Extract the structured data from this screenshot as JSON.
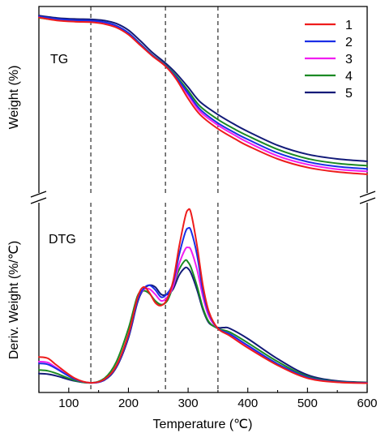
{
  "chart_data": {
    "type": "line",
    "xlabel": "Temperature (℃)",
    "xlim": [
      50,
      600
    ],
    "xticks": [
      100,
      200,
      300,
      400,
      500,
      600
    ],
    "vlines": [
      137,
      262,
      350
    ],
    "grid": false,
    "legend_position": "top-right",
    "panels": [
      {
        "label": "TG",
        "ylabel": "Weight (%)",
        "ylim": [
          0,
          1
        ]
      },
      {
        "label": "DTG",
        "ylabel": "Deriv. Weight (%/℃)",
        "ylim": [
          0,
          1
        ]
      }
    ],
    "series": [
      {
        "name": "1",
        "color": "#ee1c1c",
        "tg": [
          [
            50,
            0.975
          ],
          [
            80,
            0.958
          ],
          [
            110,
            0.951
          ],
          [
            137,
            0.948
          ],
          [
            160,
            0.938
          ],
          [
            180,
            0.918
          ],
          [
            200,
            0.878
          ],
          [
            220,
            0.818
          ],
          [
            240,
            0.758
          ],
          [
            262,
            0.7
          ],
          [
            280,
            0.628
          ],
          [
            300,
            0.518
          ],
          [
            320,
            0.428
          ],
          [
            350,
            0.348
          ],
          [
            380,
            0.288
          ],
          [
            400,
            0.252
          ],
          [
            450,
            0.178
          ],
          [
            500,
            0.13
          ],
          [
            550,
            0.105
          ],
          [
            600,
            0.092
          ]
        ],
        "dtg": [
          [
            50,
            0.175
          ],
          [
            65,
            0.168
          ],
          [
            80,
            0.13
          ],
          [
            110,
            0.06
          ],
          [
            137,
            0.035
          ],
          [
            160,
            0.055
          ],
          [
            180,
            0.13
          ],
          [
            200,
            0.3
          ],
          [
            215,
            0.495
          ],
          [
            225,
            0.555
          ],
          [
            235,
            0.525
          ],
          [
            245,
            0.47
          ],
          [
            255,
            0.455
          ],
          [
            265,
            0.49
          ],
          [
            275,
            0.59
          ],
          [
            285,
            0.775
          ],
          [
            295,
            0.935
          ],
          [
            300,
            0.975
          ],
          [
            305,
            0.955
          ],
          [
            315,
            0.78
          ],
          [
            325,
            0.56
          ],
          [
            335,
            0.42
          ],
          [
            350,
            0.33
          ],
          [
            370,
            0.29
          ],
          [
            400,
            0.225
          ],
          [
            450,
            0.13
          ],
          [
            500,
            0.06
          ],
          [
            550,
            0.038
          ],
          [
            600,
            0.033
          ]
        ]
      },
      {
        "name": "2",
        "color": "#1a2ee6",
        "tg": [
          [
            50,
            0.98
          ],
          [
            80,
            0.966
          ],
          [
            110,
            0.959
          ],
          [
            137,
            0.957
          ],
          [
            160,
            0.948
          ],
          [
            180,
            0.928
          ],
          [
            200,
            0.888
          ],
          [
            220,
            0.825
          ],
          [
            240,
            0.762
          ],
          [
            262,
            0.703
          ],
          [
            280,
            0.638
          ],
          [
            300,
            0.548
          ],
          [
            320,
            0.458
          ],
          [
            350,
            0.38
          ],
          [
            380,
            0.322
          ],
          [
            400,
            0.288
          ],
          [
            450,
            0.212
          ],
          [
            500,
            0.162
          ],
          [
            550,
            0.135
          ],
          [
            600,
            0.122
          ]
        ],
        "dtg": [
          [
            50,
            0.14
          ],
          [
            65,
            0.135
          ],
          [
            80,
            0.11
          ],
          [
            110,
            0.055
          ],
          [
            137,
            0.035
          ],
          [
            160,
            0.052
          ],
          [
            180,
            0.125
          ],
          [
            200,
            0.29
          ],
          [
            215,
            0.48
          ],
          [
            225,
            0.545
          ],
          [
            235,
            0.565
          ],
          [
            245,
            0.54
          ],
          [
            255,
            0.5
          ],
          [
            265,
            0.52
          ],
          [
            275,
            0.58
          ],
          [
            285,
            0.73
          ],
          [
            295,
            0.85
          ],
          [
            300,
            0.875
          ],
          [
            305,
            0.86
          ],
          [
            315,
            0.73
          ],
          [
            325,
            0.53
          ],
          [
            335,
            0.41
          ],
          [
            350,
            0.33
          ],
          [
            370,
            0.3
          ],
          [
            400,
            0.238
          ],
          [
            450,
            0.138
          ],
          [
            500,
            0.065
          ],
          [
            550,
            0.04
          ],
          [
            600,
            0.035
          ]
        ]
      },
      {
        "name": "3",
        "color": "#f01ef0",
        "tg": [
          [
            50,
            0.977
          ],
          [
            80,
            0.962
          ],
          [
            110,
            0.956
          ],
          [
            137,
            0.953
          ],
          [
            160,
            0.944
          ],
          [
            180,
            0.924
          ],
          [
            200,
            0.885
          ],
          [
            220,
            0.822
          ],
          [
            240,
            0.76
          ],
          [
            262,
            0.702
          ],
          [
            280,
            0.635
          ],
          [
            300,
            0.538
          ],
          [
            320,
            0.445
          ],
          [
            350,
            0.368
          ],
          [
            380,
            0.308
          ],
          [
            400,
            0.272
          ],
          [
            450,
            0.195
          ],
          [
            500,
            0.147
          ],
          [
            550,
            0.12
          ],
          [
            600,
            0.108
          ]
        ],
        "dtg": [
          [
            50,
            0.15
          ],
          [
            65,
            0.145
          ],
          [
            80,
            0.115
          ],
          [
            110,
            0.055
          ],
          [
            137,
            0.035
          ],
          [
            160,
            0.052
          ],
          [
            180,
            0.125
          ],
          [
            200,
            0.29
          ],
          [
            215,
            0.48
          ],
          [
            225,
            0.54
          ],
          [
            235,
            0.545
          ],
          [
            245,
            0.515
          ],
          [
            255,
            0.48
          ],
          [
            265,
            0.5
          ],
          [
            275,
            0.56
          ],
          [
            285,
            0.68
          ],
          [
            295,
            0.76
          ],
          [
            300,
            0.77
          ],
          [
            305,
            0.755
          ],
          [
            315,
            0.65
          ],
          [
            325,
            0.5
          ],
          [
            335,
            0.395
          ],
          [
            350,
            0.33
          ],
          [
            370,
            0.295
          ],
          [
            400,
            0.235
          ],
          [
            450,
            0.135
          ],
          [
            500,
            0.062
          ],
          [
            550,
            0.039
          ],
          [
            600,
            0.034
          ]
        ]
      },
      {
        "name": "4",
        "color": "#1b8a24",
        "tg": [
          [
            50,
            0.973
          ],
          [
            80,
            0.96
          ],
          [
            110,
            0.955
          ],
          [
            137,
            0.952
          ],
          [
            160,
            0.943
          ],
          [
            180,
            0.924
          ],
          [
            200,
            0.887
          ],
          [
            220,
            0.826
          ],
          [
            240,
            0.764
          ],
          [
            262,
            0.706
          ],
          [
            280,
            0.645
          ],
          [
            300,
            0.562
          ],
          [
            320,
            0.475
          ],
          [
            350,
            0.4
          ],
          [
            380,
            0.342
          ],
          [
            400,
            0.308
          ],
          [
            450,
            0.232
          ],
          [
            500,
            0.18
          ],
          [
            550,
            0.153
          ],
          [
            600,
            0.14
          ]
        ],
        "dtg": [
          [
            50,
            0.105
          ],
          [
            65,
            0.1
          ],
          [
            80,
            0.085
          ],
          [
            110,
            0.048
          ],
          [
            137,
            0.035
          ],
          [
            160,
            0.06
          ],
          [
            180,
            0.15
          ],
          [
            200,
            0.33
          ],
          [
            215,
            0.505
          ],
          [
            225,
            0.535
          ],
          [
            235,
            0.52
          ],
          [
            245,
            0.48
          ],
          [
            255,
            0.46
          ],
          [
            265,
            0.48
          ],
          [
            275,
            0.56
          ],
          [
            285,
            0.65
          ],
          [
            295,
            0.7
          ],
          [
            300,
            0.69
          ],
          [
            305,
            0.66
          ],
          [
            315,
            0.56
          ],
          [
            325,
            0.44
          ],
          [
            335,
            0.365
          ],
          [
            350,
            0.33
          ],
          [
            370,
            0.31
          ],
          [
            400,
            0.252
          ],
          [
            450,
            0.15
          ],
          [
            500,
            0.07
          ],
          [
            550,
            0.042
          ],
          [
            600,
            0.036
          ]
        ]
      },
      {
        "name": "5",
        "color": "#121a78",
        "tg": [
          [
            50,
            0.985
          ],
          [
            80,
            0.972
          ],
          [
            110,
            0.966
          ],
          [
            137,
            0.964
          ],
          [
            160,
            0.957
          ],
          [
            180,
            0.94
          ],
          [
            200,
            0.903
          ],
          [
            220,
            0.843
          ],
          [
            240,
            0.778
          ],
          [
            262,
            0.718
          ],
          [
            280,
            0.66
          ],
          [
            300,
            0.582
          ],
          [
            320,
            0.5
          ],
          [
            350,
            0.428
          ],
          [
            380,
            0.368
          ],
          [
            400,
            0.333
          ],
          [
            450,
            0.255
          ],
          [
            500,
            0.204
          ],
          [
            550,
            0.178
          ],
          [
            600,
            0.165
          ]
        ],
        "dtg": [
          [
            50,
            0.085
          ],
          [
            65,
            0.082
          ],
          [
            80,
            0.072
          ],
          [
            110,
            0.045
          ],
          [
            137,
            0.035
          ],
          [
            160,
            0.05
          ],
          [
            180,
            0.12
          ],
          [
            200,
            0.28
          ],
          [
            215,
            0.47
          ],
          [
            225,
            0.54
          ],
          [
            235,
            0.565
          ],
          [
            245,
            0.555
          ],
          [
            255,
            0.515
          ],
          [
            265,
            0.515
          ],
          [
            275,
            0.545
          ],
          [
            285,
            0.62
          ],
          [
            295,
            0.66
          ],
          [
            300,
            0.655
          ],
          [
            305,
            0.63
          ],
          [
            315,
            0.54
          ],
          [
            325,
            0.43
          ],
          [
            335,
            0.36
          ],
          [
            350,
            0.335
          ],
          [
            360,
            0.335
          ],
          [
            370,
            0.33
          ],
          [
            400,
            0.275
          ],
          [
            450,
            0.165
          ],
          [
            500,
            0.078
          ],
          [
            550,
            0.045
          ],
          [
            600,
            0.037
          ]
        ]
      }
    ]
  }
}
